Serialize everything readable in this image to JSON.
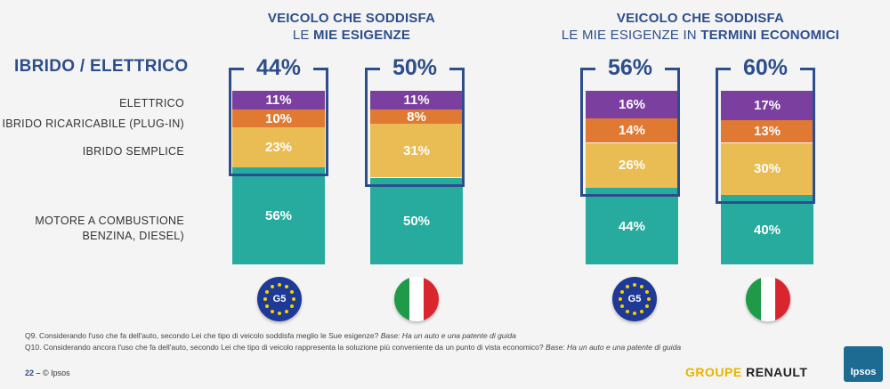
{
  "headers": {
    "left_line1": "VEICOLO CHE SODDISFA",
    "left_line2_prefix": "LE ",
    "left_line2_bold": "MIE ESIGENZE",
    "right_line1": "VEICOLO CHE SODDISFA",
    "right_line2_prefix": "LE MIE ESIGENZE IN ",
    "right_line2_bold": "TERMINI ECONOMICI"
  },
  "main_label": "IBRIDO / ELETTRICO",
  "category_labels": [
    "ELETTRICO",
    "IBRIDO RICARICABILE (PLUG-IN)",
    "IBRIDO SEMPLICE",
    "MOTORE A COMBUSTIONE",
    "BENZINA, DIESEL)"
  ],
  "colors": {
    "elettrico": "#7b3fa0",
    "plugin": "#e07a32",
    "semplice": "#e9bc54",
    "combustione": "#27ab9e",
    "bracket": "#2d4e8c"
  },
  "chart_data": [
    {
      "type": "bar",
      "stacked": true,
      "title": "VEICOLO CHE SODDISFA LE MIE ESIGENZE",
      "categories": [
        "G5",
        "Italia"
      ],
      "totals_label": [
        "44%",
        "50%"
      ],
      "series": [
        {
          "name": "ELETTRICO",
          "values": [
            11,
            11
          ],
          "labels": [
            "11%",
            "11%"
          ]
        },
        {
          "name": "IBRIDO RICARICABILE (PLUG-IN)",
          "values": [
            10,
            8
          ],
          "labels": [
            "10%",
            "8%"
          ]
        },
        {
          "name": "IBRIDO SEMPLICE",
          "values": [
            23,
            31
          ],
          "labels": [
            "23%",
            "31%"
          ]
        },
        {
          "name": "MOTORE A COMBUSTIONE BENZINA, DIESEL)",
          "values": [
            56,
            50
          ],
          "labels": [
            "56%",
            "50%"
          ]
        }
      ]
    },
    {
      "type": "bar",
      "stacked": true,
      "title": "VEICOLO CHE SODDISFA LE MIE ESIGENZE IN TERMINI ECONOMICI",
      "categories": [
        "G5",
        "Italia"
      ],
      "totals_label": [
        "56%",
        "60%"
      ],
      "series": [
        {
          "name": "ELETTRICO",
          "values": [
            16,
            17
          ],
          "labels": [
            "16%",
            "17%"
          ]
        },
        {
          "name": "IBRIDO RICARICABILE (PLUG-IN)",
          "values": [
            14,
            13
          ],
          "labels": [
            "14%",
            "13%"
          ]
        },
        {
          "name": "IBRIDO SEMPLICE",
          "values": [
            26,
            30
          ],
          "labels": [
            "26%",
            "30%"
          ]
        },
        {
          "name": "MOTORE A COMBUSTIONE BENZINA, DIESEL)",
          "values": [
            44,
            40
          ],
          "labels": [
            "44%",
            "40%"
          ]
        }
      ]
    }
  ],
  "flags": {
    "eu_label": "G5"
  },
  "footnotes": {
    "q9_text": "Q9. Considerando l'uso che fa dell'auto, secondo Lei che tipo di veicolo soddisfa meglio le Sue esigenze? ",
    "q9_base": "Base: Ha un auto e una patente di guida",
    "q10_text": "Q10. Considerando ancora l'uso che fa dell'auto, secondo Lei che tipo di veicolo rappresenta la soluzione più conveniente da un punto di vista economico? ",
    "q10_base": "Base: Ha un auto e una patente di guida"
  },
  "page_number": "22",
  "page_sep": " – ",
  "copyright": "© Ipsos",
  "brand": {
    "groupe": "GROUPE ",
    "renault": "RENAULT",
    "ipsos": "Ipsos"
  }
}
